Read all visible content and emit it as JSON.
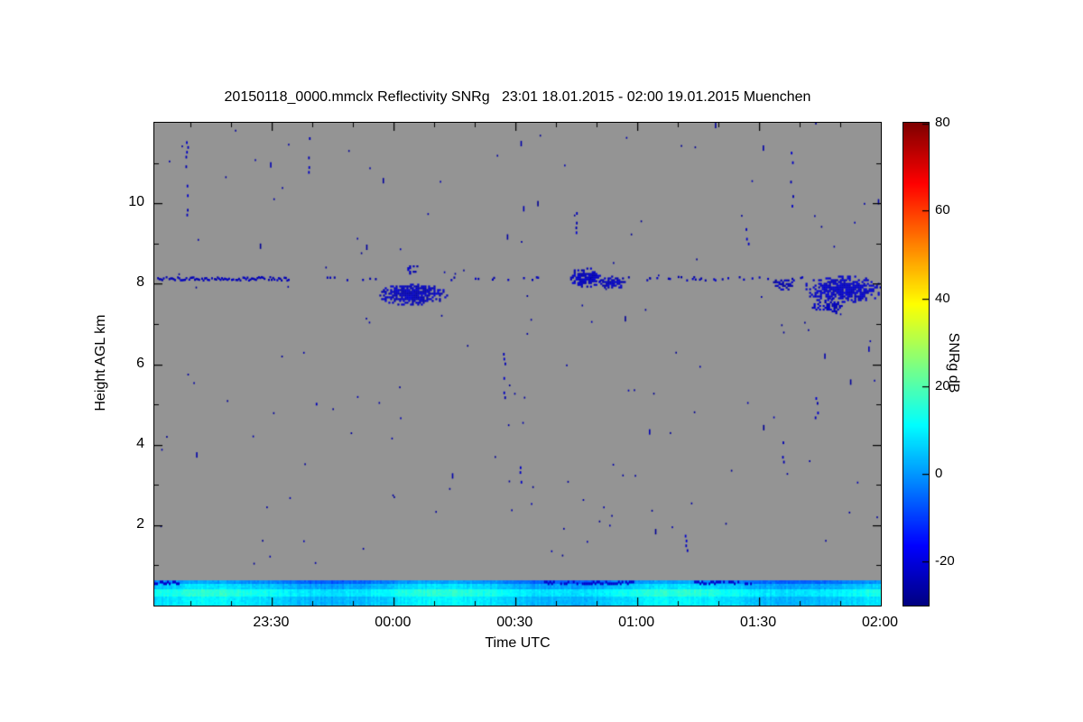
{
  "chart_data": {
    "type": "heatmap",
    "title": "20150118_0000.mmclx Reflectivity SNRg   23:01 18.01.2015 - 02:00 19.01.2015 Muenchen",
    "xlabel": "Time UTC",
    "ylabel": "Height AGL km",
    "station": "Muenchen",
    "time_span": "23:01 18.01.2015 - 02:00 19.01.2015",
    "x_axis": {
      "range_minutes": [
        0,
        179
      ],
      "ticks": [
        {
          "label": "23:30",
          "t": 29
        },
        {
          "label": "00:00",
          "t": 59
        },
        {
          "label": "00:30",
          "t": 89
        },
        {
          "label": "01:00",
          "t": 119
        },
        {
          "label": "01:30",
          "t": 149
        },
        {
          "label": "02:00",
          "t": 179
        }
      ],
      "minor_tick_minutes": 10
    },
    "y_axis": {
      "range_km": [
        0,
        12
      ],
      "ticks": [
        {
          "label": "2",
          "km": 2
        },
        {
          "label": "4",
          "km": 4
        },
        {
          "label": "6",
          "km": 6
        },
        {
          "label": "8",
          "km": 8
        },
        {
          "label": "10",
          "km": 10
        }
      ],
      "minor_tick_km": 1
    },
    "colorbar": {
      "label": "SNRg dB",
      "range_db": [
        -30,
        80
      ],
      "ticks": [
        80,
        60,
        40,
        20,
        0,
        -20
      ],
      "colormap": "jet"
    },
    "background": {
      "no_signal_color": "#949494"
    },
    "features": {
      "noise_speckles": {
        "count": 160,
        "value_db": -26,
        "description": "sparse dark-blue noise pixels scattered over the gray no-signal background"
      },
      "vertical_streaks": [
        [
          8,
          9.5,
          11.6
        ],
        [
          38,
          10.8,
          11.8
        ],
        [
          40,
          4.8,
          5.4
        ],
        [
          86,
          5.2,
          6.3
        ],
        [
          90,
          3.1,
          3.5
        ],
        [
          104,
          9.3,
          10.1
        ],
        [
          131,
          1.4,
          1.9
        ],
        [
          146,
          8.9,
          9.4
        ],
        [
          155,
          3.6,
          4.4
        ],
        [
          157,
          9.6,
          11.3
        ],
        [
          163,
          4.7,
          5.3
        ]
      ],
      "cloud_line": {
        "height_km": 8.15,
        "value_db": -24,
        "segments": [
          [
            0,
            33,
            0.8
          ],
          [
            40,
            55,
            0.22
          ],
          [
            73,
            99,
            0.2
          ],
          [
            116,
            151,
            0.22
          ],
          [
            157,
            160,
            0.3
          ]
        ]
      },
      "cloud_patches": [
        {
          "t_range": [
            55,
            72
          ],
          "km_range": [
            7.5,
            8.0
          ],
          "value_db": -23,
          "density": 0.8
        },
        {
          "t_range": [
            61,
            65
          ],
          "km_range": [
            8.25,
            8.5
          ],
          "value_db": -24,
          "density": 0.5
        },
        {
          "t_range": [
            102,
            110
          ],
          "km_range": [
            7.95,
            8.4
          ],
          "value_db": -23,
          "density": 0.7
        },
        {
          "t_range": [
            109,
            116
          ],
          "km_range": [
            7.9,
            8.2
          ],
          "value_db": -23,
          "density": 0.7
        },
        {
          "t_range": [
            152,
            157
          ],
          "km_range": [
            7.85,
            8.15
          ],
          "value_db": -24,
          "density": 0.6
        },
        {
          "t_range": [
            160,
            179
          ],
          "km_range": [
            7.55,
            8.2
          ],
          "value_db": -22,
          "density": 0.75
        },
        {
          "t_range": [
            162,
            170
          ],
          "km_range": [
            7.25,
            7.65
          ],
          "value_db": -23,
          "density": 0.5
        }
      ],
      "boundary_layer_band": {
        "km_range": [
          0.04,
          0.62
        ],
        "value_db_range": [
          0,
          16
        ],
        "dark_top_segments_t": [
          [
            0,
            6
          ],
          [
            96,
            118
          ],
          [
            133,
            147
          ]
        ]
      }
    }
  }
}
